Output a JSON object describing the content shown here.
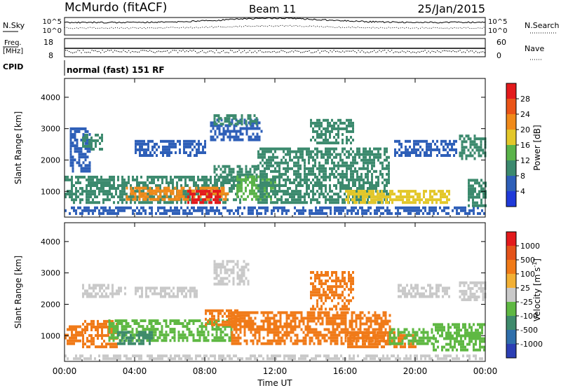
{
  "header": {
    "station": "McMurdo (fitACF)",
    "beam": "Beam 11",
    "date": "25/Jan/2015"
  },
  "top_panels": {
    "nsky_label": "N.Sky",
    "nsky_ticks": [
      "10^5",
      "10^0"
    ],
    "nsearch_label": "N.Search",
    "nsearch_ticks": [
      "10^5",
      "10^0"
    ],
    "freq_label": "Freq.",
    "freq_unit": "[MHz]",
    "freq_ticks": [
      "18",
      "8"
    ],
    "nave_label": "Nave",
    "nave_ticks": [
      "60",
      "0"
    ],
    "cpid_label": "CPID",
    "cpid_text": "normal (fast) 151 RF"
  },
  "chart_data": [
    {
      "type": "heatmap",
      "name": "power",
      "ylabel": "Slant Range [km]",
      "yticks": [
        "1000",
        "2000",
        "3000",
        "4000"
      ],
      "ylim": [
        180,
        4600
      ],
      "xlim": [
        0,
        24
      ],
      "xticks": [
        "00:00",
        "04:00",
        "08:00",
        "12:00",
        "16:00",
        "20:00",
        "00:00"
      ],
      "colorbar_label": "Power [dB]",
      "colorbar_ticks": [
        "4",
        "8",
        "12",
        "16",
        "20",
        "24",
        "28"
      ],
      "colorbar_colors": [
        "#1f3ad9",
        "#2e5fb8",
        "#3c8a6e",
        "#5ab34a",
        "#e3c72a",
        "#f08a1a",
        "#ea5418",
        "#e31a1c"
      ],
      "colorbar_range": [
        0,
        30
      ],
      "regions": [
        {
          "t0": 0.0,
          "t1": 24.0,
          "r0": 250,
          "r1": 480,
          "v": 6
        },
        {
          "t0": 0.0,
          "t1": 10.0,
          "r0": 600,
          "r1": 1500,
          "v": 10
        },
        {
          "t0": 3.5,
          "t1": 9.3,
          "r0": 700,
          "r1": 1100,
          "v": 22
        },
        {
          "t0": 7.0,
          "t1": 8.8,
          "r0": 600,
          "r1": 1000,
          "v": 28
        },
        {
          "t0": 0.3,
          "t1": 1.5,
          "r0": 1600,
          "r1": 3000,
          "v": 6
        },
        {
          "t0": 1.0,
          "t1": 2.2,
          "r0": 2300,
          "r1": 2800,
          "v": 8
        },
        {
          "t0": 4.0,
          "t1": 8.0,
          "r0": 2100,
          "r1": 2600,
          "v": 7
        },
        {
          "t0": 8.5,
          "t1": 11.0,
          "r0": 1300,
          "r1": 1800,
          "v": 8
        },
        {
          "t0": 8.3,
          "t1": 11.2,
          "r0": 2600,
          "r1": 3300,
          "v": 7
        },
        {
          "t0": 8.5,
          "t1": 11.0,
          "r0": 3100,
          "r1": 3400,
          "v": 9
        },
        {
          "t0": 9.8,
          "t1": 12.3,
          "r0": 700,
          "r1": 1500,
          "v": 12
        },
        {
          "t0": 11.0,
          "t1": 18.5,
          "r0": 600,
          "r1": 2400,
          "v": 11
        },
        {
          "t0": 14.0,
          "t1": 16.5,
          "r0": 2500,
          "r1": 3300,
          "v": 8
        },
        {
          "t0": 16.0,
          "t1": 22.0,
          "r0": 600,
          "r1": 1000,
          "v": 16
        },
        {
          "t0": 18.8,
          "t1": 22.3,
          "r0": 2100,
          "r1": 2600,
          "v": 6
        },
        {
          "t0": 22.5,
          "t1": 24.0,
          "r0": 2000,
          "r1": 2800,
          "v": 8
        },
        {
          "t0": 23.0,
          "t1": 24.0,
          "r0": 500,
          "r1": 1400,
          "v": 10
        }
      ]
    },
    {
      "type": "heatmap",
      "name": "velocity",
      "ylabel": "Slant Range [km]",
      "yticks": [
        "1000",
        "2000",
        "3000",
        "4000"
      ],
      "ylim": [
        180,
        4600
      ],
      "xlim": [
        0,
        24
      ],
      "xticks": [
        "00:00",
        "04:00",
        "08:00",
        "12:00",
        "16:00",
        "20:00",
        "00:00"
      ],
      "xlabel": "Time UT",
      "colorbar_label": "Velocity [m s",
      "colorbar_label_sup": "-1",
      "colorbar_label_end": "]",
      "colorbar_ticks": [
        "1000",
        "500",
        "100",
        "25",
        "-25",
        "-100",
        "-500",
        "-1000"
      ],
      "colorbar_colors": [
        "#2c3fb4",
        "#2f6fab",
        "#3f8b6c",
        "#5fb843",
        "#c9c9c9",
        "#f2b035",
        "#f07a18",
        "#e4531a",
        "#e31a1c"
      ],
      "regions": [
        {
          "t0": 0.0,
          "t1": 24.0,
          "r0": 220,
          "r1": 380,
          "c": 4
        },
        {
          "t0": 0.0,
          "t1": 1.0,
          "r0": 700,
          "r1": 1300,
          "c": 6
        },
        {
          "t0": 1.0,
          "t1": 3.0,
          "r0": 600,
          "r1": 1500,
          "c": 6
        },
        {
          "t0": 2.5,
          "t1": 9.5,
          "r0": 800,
          "r1": 1500,
          "c": 3
        },
        {
          "t0": 3.0,
          "t1": 5.0,
          "r0": 700,
          "r1": 1100,
          "c": 2
        },
        {
          "t0": 1.0,
          "t1": 3.5,
          "r0": 2200,
          "r1": 2600,
          "c": 4
        },
        {
          "t0": 4.0,
          "t1": 7.5,
          "r0": 2200,
          "r1": 2500,
          "c": 4
        },
        {
          "t0": 8.5,
          "t1": 10.5,
          "r0": 2600,
          "r1": 3400,
          "c": 4
        },
        {
          "t0": 8.0,
          "t1": 10.0,
          "r0": 1300,
          "r1": 1800,
          "c": 6
        },
        {
          "t0": 9.5,
          "t1": 18.5,
          "r0": 700,
          "r1": 1700,
          "c": 6
        },
        {
          "t0": 14.0,
          "t1": 16.5,
          "r0": 1800,
          "r1": 3000,
          "c": 6
        },
        {
          "t0": 16.0,
          "t1": 20.0,
          "r0": 600,
          "r1": 1100,
          "c": 6
        },
        {
          "t0": 18.5,
          "t1": 21.0,
          "r0": 700,
          "r1": 1200,
          "c": 3
        },
        {
          "t0": 19.0,
          "t1": 22.0,
          "r0": 2200,
          "r1": 2600,
          "c": 4
        },
        {
          "t0": 21.0,
          "t1": 24.0,
          "r0": 500,
          "r1": 1400,
          "c": 3
        },
        {
          "t0": 22.5,
          "t1": 24.0,
          "r0": 2100,
          "r1": 2700,
          "c": 4
        }
      ]
    }
  ]
}
